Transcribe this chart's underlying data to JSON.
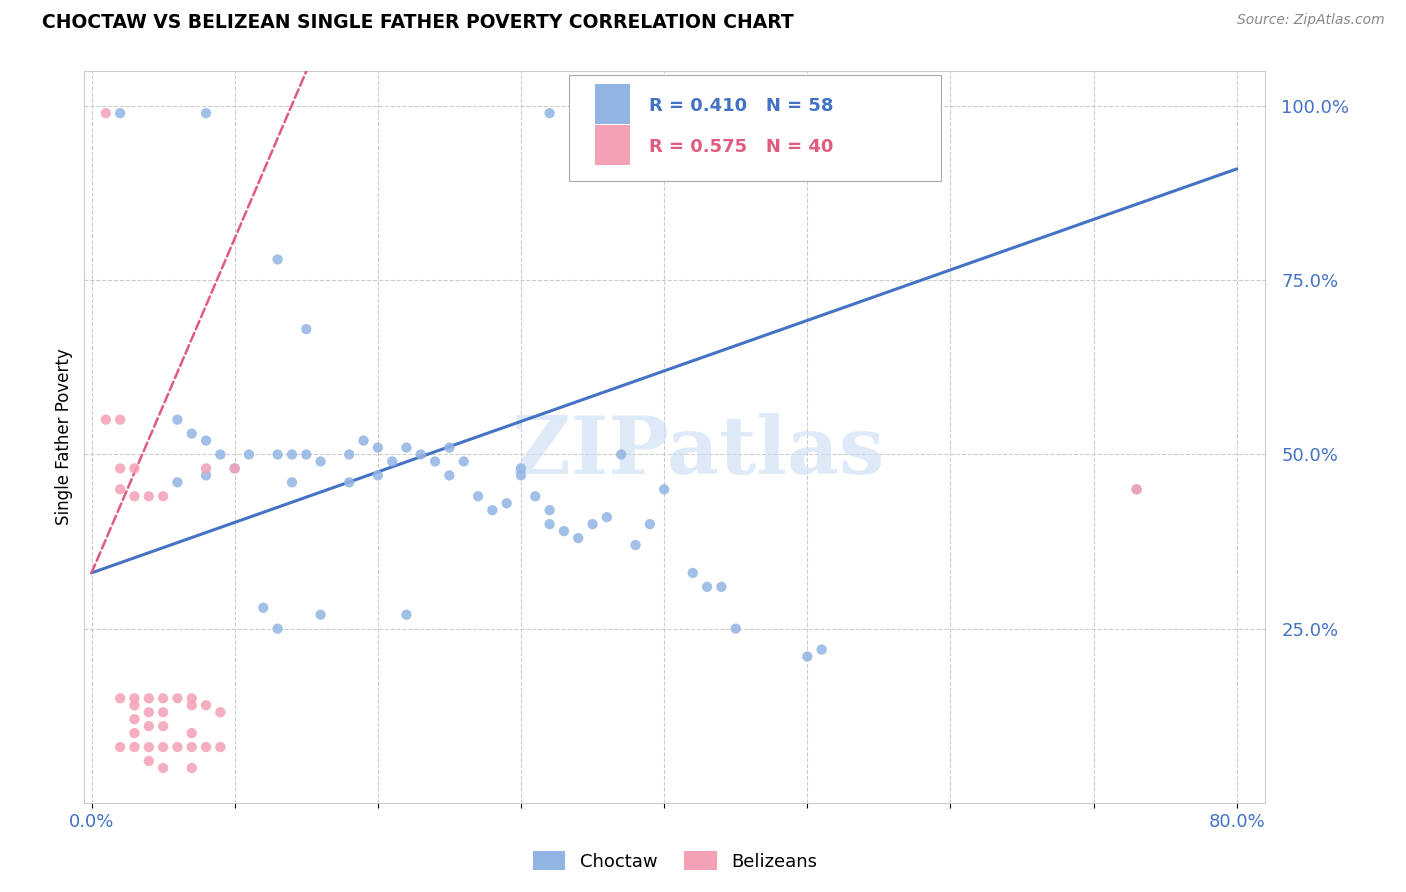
{
  "title": "CHOCTAW VS BELIZEAN SINGLE FATHER POVERTY CORRELATION CHART",
  "source": "Source: ZipAtlas.com",
  "ylabel": "Single Father Poverty",
  "xlim": [
    0.0,
    0.8
  ],
  "ylim": [
    0.0,
    1.05
  ],
  "choctaw_color": "#92b4e3",
  "belizean_color": "#f4a0b5",
  "trend_blue": "#4472c4",
  "trend_pink": "#e05c7e",
  "R_choctaw": 0.41,
  "N_choctaw": 58,
  "R_belizean": 0.575,
  "N_belizean": 40,
  "watermark": "ZIPatlas",
  "choctaw_x": [
    0.02,
    0.08,
    0.32,
    0.37,
    0.13,
    0.15,
    0.06,
    0.07,
    0.08,
    0.09,
    0.1,
    0.11,
    0.13,
    0.14,
    0.15,
    0.16,
    0.18,
    0.19,
    0.2,
    0.21,
    0.22,
    0.23,
    0.24,
    0.25,
    0.26,
    0.27,
    0.28,
    0.29,
    0.3,
    0.31,
    0.32,
    0.33,
    0.34,
    0.35,
    0.36,
    0.37,
    0.38,
    0.4,
    0.42,
    0.43,
    0.44,
    0.45,
    0.5,
    0.51,
    0.73,
    0.06,
    0.08,
    0.14,
    0.18,
    0.2,
    0.25,
    0.3,
    0.32,
    0.39,
    0.12,
    0.13,
    0.16,
    0.22
  ],
  "choctaw_y": [
    0.99,
    0.99,
    0.99,
    0.99,
    0.78,
    0.68,
    0.55,
    0.53,
    0.52,
    0.5,
    0.48,
    0.5,
    0.5,
    0.5,
    0.5,
    0.49,
    0.5,
    0.52,
    0.51,
    0.49,
    0.51,
    0.5,
    0.49,
    0.51,
    0.49,
    0.44,
    0.42,
    0.43,
    0.48,
    0.44,
    0.42,
    0.39,
    0.38,
    0.4,
    0.41,
    0.5,
    0.37,
    0.45,
    0.33,
    0.31,
    0.31,
    0.25,
    0.21,
    0.22,
    0.45,
    0.46,
    0.47,
    0.46,
    0.46,
    0.47,
    0.47,
    0.47,
    0.4,
    0.4,
    0.28,
    0.25,
    0.27,
    0.27
  ],
  "belizean_x": [
    0.01,
    0.01,
    0.02,
    0.02,
    0.02,
    0.02,
    0.02,
    0.03,
    0.03,
    0.03,
    0.03,
    0.03,
    0.03,
    0.03,
    0.04,
    0.04,
    0.04,
    0.04,
    0.04,
    0.04,
    0.05,
    0.05,
    0.05,
    0.05,
    0.05,
    0.05,
    0.06,
    0.06,
    0.07,
    0.07,
    0.07,
    0.07,
    0.07,
    0.08,
    0.08,
    0.08,
    0.09,
    0.09,
    0.1,
    0.73
  ],
  "belizean_y": [
    0.99,
    0.55,
    0.55,
    0.48,
    0.45,
    0.15,
    0.08,
    0.48,
    0.44,
    0.15,
    0.14,
    0.12,
    0.1,
    0.08,
    0.44,
    0.15,
    0.13,
    0.11,
    0.08,
    0.06,
    0.44,
    0.15,
    0.13,
    0.11,
    0.08,
    0.05,
    0.15,
    0.08,
    0.15,
    0.14,
    0.1,
    0.08,
    0.05,
    0.48,
    0.14,
    0.08,
    0.13,
    0.08,
    0.48,
    0.45
  ],
  "blue_line_x": [
    0.0,
    0.8
  ],
  "blue_line_y": [
    0.33,
    0.91
  ],
  "pink_line_x": [
    0.0,
    0.15
  ],
  "pink_line_y": [
    0.33,
    1.05
  ]
}
